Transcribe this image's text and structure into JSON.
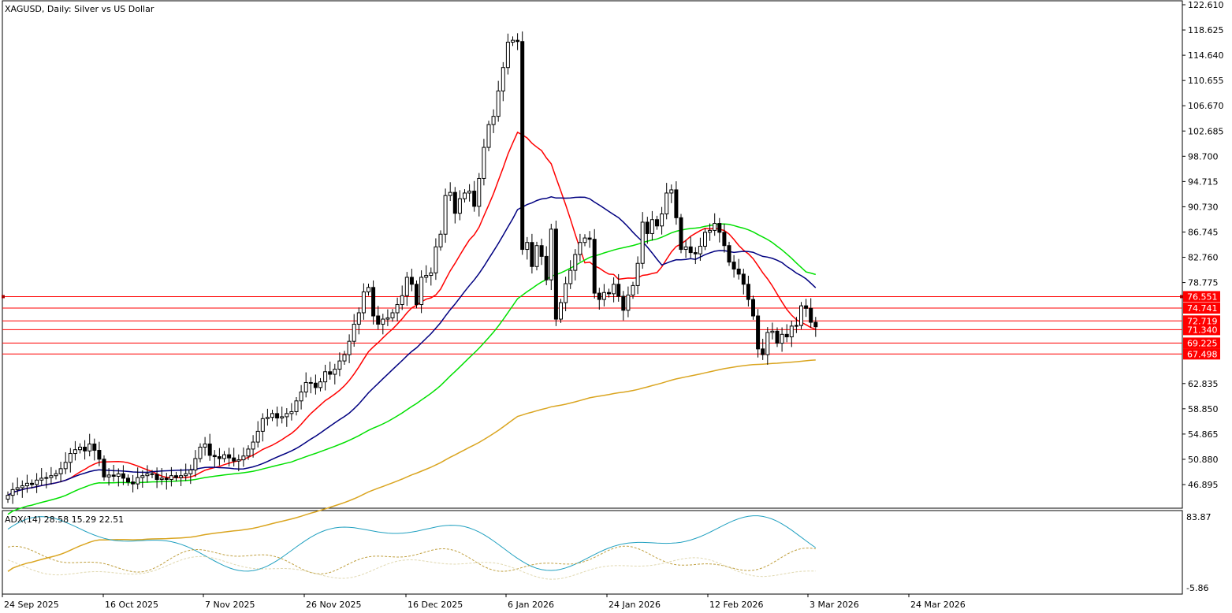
{
  "symbol_title": "XAGUSD, Daily:  Silver vs US Dollar",
  "indicator_title": "ADX(14) 28.58 15.29 22.51",
  "price_axis": [
    "122.610",
    "118.625",
    "114.640",
    "110.655",
    "106.670",
    "102.685",
    "98.700",
    "94.715",
    "90.730",
    "86.745",
    "82.760",
    "78.775",
    "50.880",
    "54.865",
    "58.850",
    "62.835",
    "46.895"
  ],
  "price_ticks": [
    {
      "label": "122.610",
      "value": 122.61
    },
    {
      "label": "118.625",
      "value": 118.625
    },
    {
      "label": "114.640",
      "value": 114.64
    },
    {
      "label": "110.655",
      "value": 110.655
    },
    {
      "label": "106.670",
      "value": 106.67
    },
    {
      "label": "102.685",
      "value": 102.685
    },
    {
      "label": "98.700",
      "value": 98.7
    },
    {
      "label": "94.715",
      "value": 94.715
    },
    {
      "label": "90.730",
      "value": 90.73
    },
    {
      "label": "86.745",
      "value": 86.745
    },
    {
      "label": "82.760",
      "value": 82.76
    },
    {
      "label": "78.775",
      "value": 78.775
    },
    {
      "label": "62.835",
      "value": 62.835
    },
    {
      "label": "58.850",
      "value": 58.85
    },
    {
      "label": "54.865",
      "value": 54.865
    },
    {
      "label": "50.880",
      "value": 50.88
    },
    {
      "label": "46.895",
      "value": 46.895
    }
  ],
  "horizontal_levels": [
    {
      "label": "76.551",
      "value": 76.551
    },
    {
      "label": "74.741",
      "value": 74.741
    },
    {
      "label": "72.719",
      "value": 72.719
    },
    {
      "label": "71.340",
      "value": 71.34
    },
    {
      "label": "69.225",
      "value": 69.225
    },
    {
      "label": "67.498",
      "value": 67.498
    }
  ],
  "adx_axis": {
    "top": "83.87",
    "bottom": "-5.86"
  },
  "date_axis": [
    "24 Sep 2025",
    "16 Oct 2025",
    "7 Nov 2025",
    "26 Nov 2025",
    "16 Dec 2025",
    "6 Jan 2026",
    "24 Jan 2026",
    "12 Feb 2026",
    "3 Mar 2026",
    "24 Mar 2026"
  ],
  "colors": {
    "level_line": "#ff0000",
    "ma_fast": "#ff0000",
    "ma_mid": "#000080",
    "ma_slow": "#00e000",
    "ma_long": "#daa520",
    "adx_main": "#20a0c0",
    "adx_plus": "#c0a040",
    "adx_minus": "#e0d8b0"
  },
  "chart_data": {
    "type": "candlestick",
    "title": "XAGUSD, Daily:  Silver vs US Dollar",
    "ylim": [
      43.0,
      122.61
    ],
    "candles_close": [
      45.2,
      46.1,
      46.4,
      46.7,
      47.1,
      46.9,
      47.6,
      47.9,
      48.0,
      48.3,
      48.6,
      49.4,
      50.4,
      51.8,
      52.4,
      52.8,
      52.2,
      53.3,
      52.3,
      50.9,
      48.1,
      48.4,
      48.2,
      48.6,
      47.9,
      47.3,
      47.0,
      48.0,
      48.3,
      48.6,
      48.5,
      47.7,
      47.9,
      47.7,
      48.3,
      48.0,
      48.3,
      48.6,
      49.2,
      51.0,
      52.8,
      53.3,
      51.5,
      51.3,
      51.0,
      51.6,
      51.1,
      50.6,
      50.8,
      51.4,
      52.5,
      53.6,
      55.3,
      57.3,
      57.5,
      58.1,
      57.4,
      57.6,
      58.1,
      58.4,
      60.1,
      61.5,
      63.0,
      62.9,
      62.2,
      63.1,
      64.7,
      64.3,
      65.1,
      66.4,
      67.4,
      69.5,
      72.2,
      74.0,
      77.3,
      78.0,
      73.5,
      72.2,
      73.0,
      73.2,
      74.0,
      75.3,
      76.7,
      79.6,
      78.5,
      75.3,
      79.6,
      79.9,
      80.3,
      84.4,
      86.4,
      92.5,
      93.0,
      89.7,
      92.0,
      92.9,
      93.2,
      90.8,
      95.2,
      100.1,
      103.7,
      105.0,
      109.0,
      112.7,
      116.7,
      117.0,
      116.8,
      84.0,
      85.1,
      81.3,
      84.6,
      82.9,
      79.2,
      87.2,
      73.0,
      75.6,
      78.6,
      80.7,
      83.2,
      85.1,
      85.8,
      85.6,
      77.1,
      76.1,
      77.2,
      77.0,
      78.5,
      76.6,
      74.4,
      76.8,
      78.3,
      81.8,
      88.3,
      86.5,
      88.7,
      87.7,
      89.6,
      92.9,
      93.4,
      89.0,
      84.0,
      84.4,
      83.5,
      83.3,
      84.5,
      86.7,
      87.0,
      88.1,
      86.7,
      84.6,
      82.0,
      80.9,
      80.1,
      78.5,
      76.1,
      73.5,
      68.3,
      67.4,
      70.9,
      71.1,
      69.2,
      70.6,
      70.2,
      71.9,
      72.0,
      75.1,
      74.7,
      72.5,
      71.8
    ],
    "series": [
      {
        "name": "MA fast",
        "values": []
      },
      {
        "name": "MA mid",
        "values": []
      },
      {
        "name": "MA slow",
        "values": []
      },
      {
        "name": "MA long",
        "values": []
      }
    ]
  }
}
